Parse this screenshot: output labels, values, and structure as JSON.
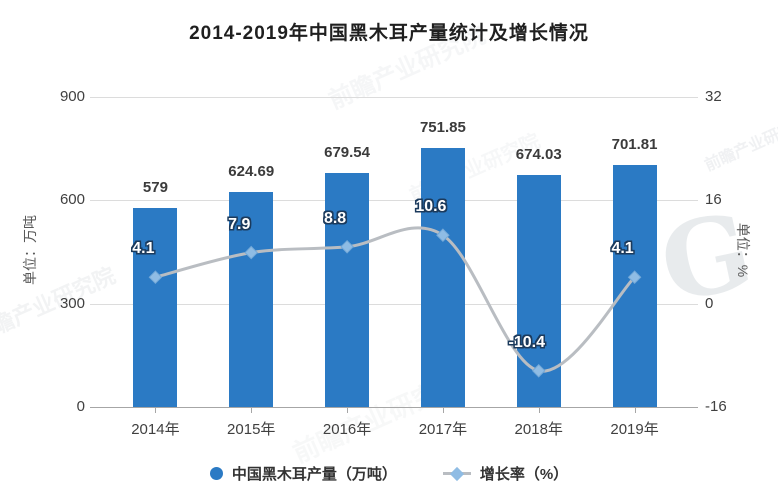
{
  "chart_data": {
    "type": "combo",
    "title": "2014-2019年中国黑木耳产量统计及增长情况",
    "categories": [
      "2014年",
      "2015年",
      "2016年",
      "2017年",
      "2018年",
      "2019年"
    ],
    "series": [
      {
        "name": "中国黑木耳产量（万吨）",
        "type": "bar",
        "axis": "left",
        "values": [
          579,
          624.69,
          679.54,
          751.85,
          674.03,
          701.81
        ],
        "labels": [
          "579",
          "624.69",
          "679.54",
          "751.85",
          "674.03",
          "701.81"
        ]
      },
      {
        "name": "增长率（%）",
        "type": "line",
        "axis": "right",
        "values": [
          4.1,
          7.9,
          8.8,
          10.6,
          -10.4,
          4.1
        ],
        "labels": [
          "4.1",
          "7.9",
          "8.8",
          "10.6",
          "-10.4",
          "4.1"
        ]
      }
    ],
    "left_axis": {
      "label": "单位：万吨",
      "ticks": [
        "900",
        "600",
        "300",
        "0"
      ],
      "min": 0,
      "max": 900
    },
    "right_axis": {
      "label": "单位：%",
      "ticks": [
        "32",
        "16",
        "0",
        "-16"
      ],
      "min": -16,
      "max": 32
    },
    "grid": true,
    "legend_position": "bottom"
  },
  "legend": {
    "items": [
      {
        "label": "中国黑木耳产量（万吨）",
        "marker": "circle"
      },
      {
        "label": "增长率（%）",
        "marker": "diamond-line"
      }
    ]
  },
  "watermarks": {
    "text": "前瞻产业研究院",
    "logo_letter": "G"
  },
  "colors": {
    "bar": "#2b7ac4",
    "line": "#b9bdc2",
    "marker": "#8fbce4",
    "marker_edge": "#74a9d8",
    "grid": "#dcdcdc",
    "axis": "#a6a6a6",
    "tick_text": "#404040",
    "bar_label_text": "#3b3b3b",
    "growth_label_outline": "#1b3a5c",
    "title_text": "#1f1f1f",
    "background": "#ffffff"
  }
}
